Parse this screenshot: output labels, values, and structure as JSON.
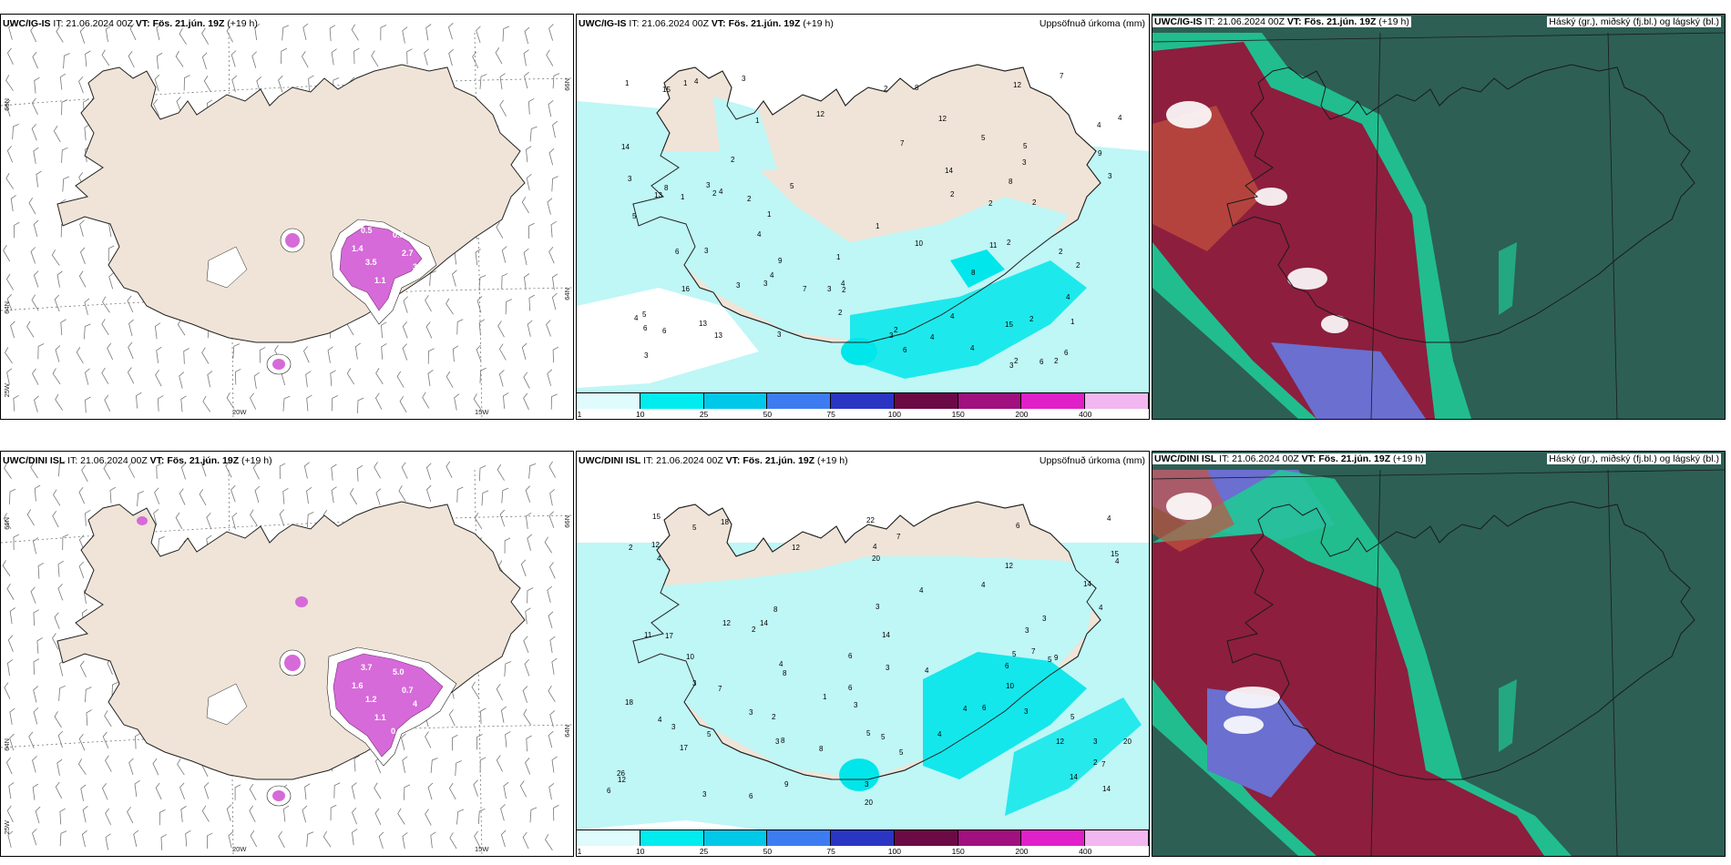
{
  "colors": {
    "land": "#efe4d7",
    "coast": "#222222",
    "ocean": "#ffffff",
    "precip_light": "#bff6f6",
    "precip_cyan": "#00e6ea",
    "precip_mid": "#22cfe6",
    "snow_magenta": "#d66ad9",
    "cloud_teal": "#2d5f55",
    "cloud_red": "#8d1e3e",
    "cloud_blue": "#6a6fd0",
    "cloud_green": "#20c896"
  },
  "panels": {
    "ig_wind": {
      "model": "UWC/IG-IS",
      "it": "IT: 21.06.2024 00Z",
      "vt": "VT: Fös. 21.jún. 19Z",
      "lead": "(+19 h)",
      "title": ""
    },
    "ig_precip": {
      "model": "UWC/IG-IS",
      "it": "IT: 21.06.2024 00Z",
      "vt": "VT: Fös. 21.jún. 19Z",
      "lead": "(+19 h)",
      "title": "Uppsöfnuð úrkoma (mm)"
    },
    "ig_cloud": {
      "model": "UWC/IG-IS",
      "it": "IT: 21.06.2024 00Z",
      "vt": "VT: Fös. 21.jún. 19Z",
      "lead": "(+19 h)",
      "title": "Háský (gr.), miðský (fj.bl.) og lágský (bl.)"
    },
    "dini_wind": {
      "model": "UWC/DINI ISL",
      "it": "IT: 21.06.2024 00Z",
      "vt": "VT: Fös. 21.jún. 19Z",
      "lead": "(+19 h)",
      "title": ""
    },
    "dini_precip": {
      "model": "UWC/DINI ISL",
      "it": "IT: 21.06.2024 00Z",
      "vt": "VT: Fös. 21.jún. 19Z",
      "lead": "(+19 h)",
      "title": "Uppsöfnuð úrkoma (mm)"
    },
    "dini_cloud": {
      "model": "UWC/DINI ISL",
      "it": "IT: 21.06.2024 00Z",
      "vt": "VT: Fös. 21.jún. 19Z",
      "lead": "(+19 h)",
      "title": "Háský (gr.), miðský (fj.bl.) og lágský (bl.)"
    }
  },
  "axes": {
    "lat66": "66N",
    "lat64": "64N",
    "lon25": "25W",
    "lon20": "20W",
    "lon15": "15W"
  },
  "legend": {
    "ticks": [
      "1",
      "10",
      "25",
      "50",
      "75",
      "100",
      "150",
      "200",
      "400"
    ],
    "colors": [
      "#dffbfb",
      "#00ecef",
      "#00c8e8",
      "#3d7cf0",
      "#2b35c4",
      "#6c0a45",
      "#a0107e",
      "#e020c8",
      "#f2b6f0"
    ]
  },
  "ig_precip_values": [
    "1",
    "2",
    "1",
    "2",
    "2",
    "1",
    "3",
    "4",
    "3",
    "2",
    "2",
    "2",
    "1",
    "2",
    "1",
    "4",
    "1",
    "3",
    "4",
    "5",
    "6",
    "4",
    "4",
    "3",
    "2",
    "2",
    "3",
    "5",
    "5",
    "4",
    "4",
    "7",
    "6",
    "4",
    "5",
    "3",
    "8",
    "4",
    "3",
    "3",
    "5",
    "6",
    "2",
    "4",
    "2",
    "6",
    "4",
    "2",
    "3",
    "12",
    "6",
    "8",
    "10",
    "12",
    "9",
    "14",
    "13",
    "15",
    "16",
    "13",
    "8",
    "12",
    "14",
    "11",
    "15",
    "13",
    "7",
    "7",
    "8",
    "9",
    "6",
    "3",
    "2",
    "3",
    "1",
    "2",
    "2",
    "1",
    "4",
    "3",
    "2",
    "3"
  ],
  "dini_precip_values": [
    "6",
    "4",
    "4",
    "8",
    "5",
    "4",
    "3",
    "4",
    "6",
    "4",
    "2",
    "3",
    "6",
    "3",
    "5",
    "4",
    "5",
    "3",
    "3",
    "6",
    "5",
    "4",
    "3",
    "5",
    "7",
    "4",
    "3",
    "3",
    "7",
    "5",
    "3",
    "8",
    "3",
    "12",
    "9",
    "10",
    "11",
    "7",
    "6",
    "12",
    "8",
    "6",
    "8",
    "4",
    "3",
    "5",
    "7",
    "9",
    "10",
    "18",
    "17",
    "20",
    "22",
    "26",
    "15",
    "20",
    "14",
    "12",
    "18",
    "17",
    "14",
    "14",
    "12",
    "14",
    "15",
    "14",
    "20",
    "12",
    "12",
    "6",
    "3",
    "2",
    "3",
    "4",
    "5",
    "2",
    "1",
    "4",
    "2",
    "4"
  ],
  "ig_snow_values": [
    "1.4",
    "0.5",
    "3.5",
    "1.1",
    "2.7",
    "3.7",
    "4",
    "0.5"
  ],
  "dini_snow_values": [
    "1.6",
    "5.0",
    "1.2",
    "1.1",
    "0.7",
    "4",
    "0.6",
    "3.7"
  ]
}
